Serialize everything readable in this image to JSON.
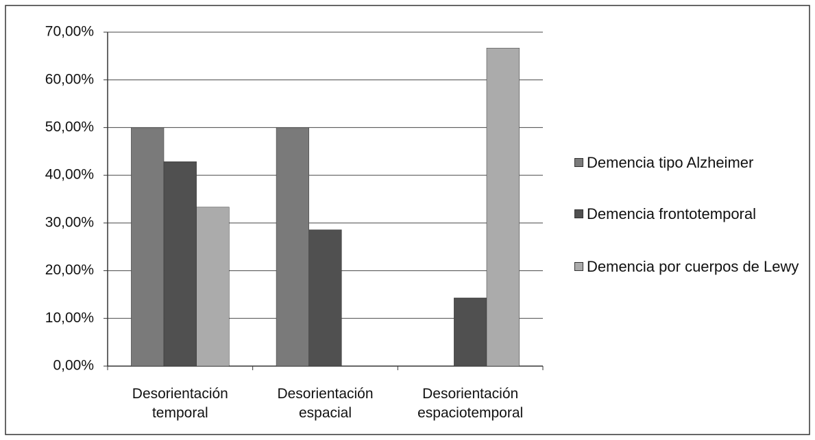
{
  "chart_data": {
    "type": "bar",
    "categories": [
      "Desorientación temporal",
      "Desorientación espacial",
      "Desorientación espaciotemporal"
    ],
    "series": [
      {
        "name": "Demencia tipo Alzheimer",
        "color": "#7a7a7a",
        "values": [
          50,
          50,
          0
        ]
      },
      {
        "name": "Demencia frontotemporal",
        "color": "#505050",
        "values": [
          42.86,
          28.57,
          14.29
        ]
      },
      {
        "name": "Demencia por cuerpos de Lewy",
        "color": "#ababab",
        "values": [
          33.33,
          0,
          66.67
        ]
      }
    ],
    "ylim": [
      0,
      70
    ],
    "yticks": [
      {
        "value": 0,
        "label": "0,00%"
      },
      {
        "value": 10,
        "label": "10,00%"
      },
      {
        "value": 20,
        "label": "20,00%"
      },
      {
        "value": 30,
        "label": "30,00%"
      },
      {
        "value": 40,
        "label": "40,00%"
      },
      {
        "value": 50,
        "label": "50,00%"
      },
      {
        "value": 60,
        "label": "60,00%"
      },
      {
        "value": 70,
        "label": "70,00%"
      }
    ],
    "grid": true,
    "legend": "right"
  }
}
